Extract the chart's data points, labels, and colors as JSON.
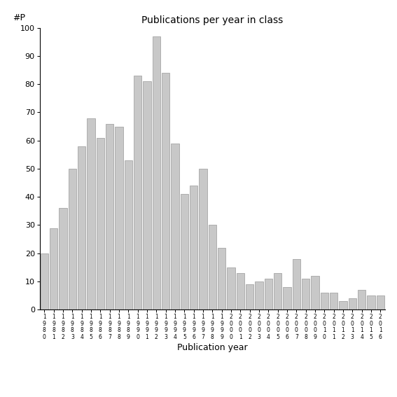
{
  "title": "Publications per year in class",
  "xlabel": "Publication year",
  "ylabel": "#P",
  "bar_color": "#c8c8c8",
  "edge_color": "#999999",
  "ylim": [
    0,
    100
  ],
  "yticks": [
    0,
    10,
    20,
    30,
    40,
    50,
    60,
    70,
    80,
    90,
    100
  ],
  "years": [
    "1980",
    "1981",
    "1982",
    "1983",
    "1984",
    "1985",
    "1986",
    "1987",
    "1988",
    "1989",
    "1990",
    "1991",
    "1992",
    "1993",
    "1994",
    "1995",
    "1996",
    "1997",
    "1998",
    "1999",
    "2000",
    "2001",
    "2002",
    "2003",
    "2004",
    "2005",
    "2006",
    "2007",
    "2008",
    "2009",
    "2010",
    "2011",
    "2012",
    "2013",
    "2014",
    "2015",
    "2016"
  ],
  "values": [
    20,
    29,
    36,
    50,
    58,
    68,
    61,
    66,
    65,
    53,
    83,
    81,
    97,
    84,
    59,
    41,
    44,
    50,
    30,
    22,
    15,
    13,
    9,
    10,
    11,
    13,
    8,
    18,
    11,
    12,
    6,
    6,
    3,
    4,
    7,
    5,
    5
  ],
  "title_fontsize": 10,
  "xlabel_fontsize": 9,
  "ylabel_fontsize": 9,
  "xtick_fontsize": 5.5,
  "ytick_fontsize": 8
}
